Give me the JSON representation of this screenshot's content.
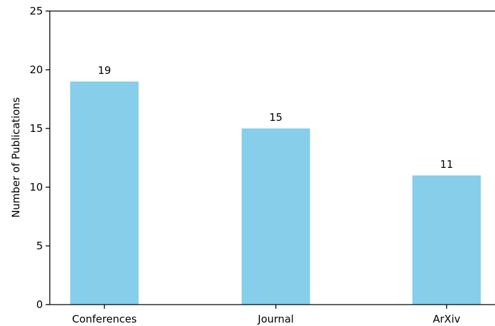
{
  "chart_data": {
    "type": "bar",
    "categories": [
      "Conferences",
      "Journal",
      "ArXiv"
    ],
    "values": [
      19,
      15,
      11
    ],
    "data_labels": [
      "19",
      "15",
      "11"
    ],
    "title": "",
    "xlabel": "",
    "ylabel": "Number of Publications",
    "ylim": [
      0,
      25
    ],
    "yticks": [
      0,
      5,
      10,
      15,
      20,
      25
    ],
    "bar_color": "#87ceeb",
    "grid": false,
    "spines": "left-bottom-top"
  }
}
